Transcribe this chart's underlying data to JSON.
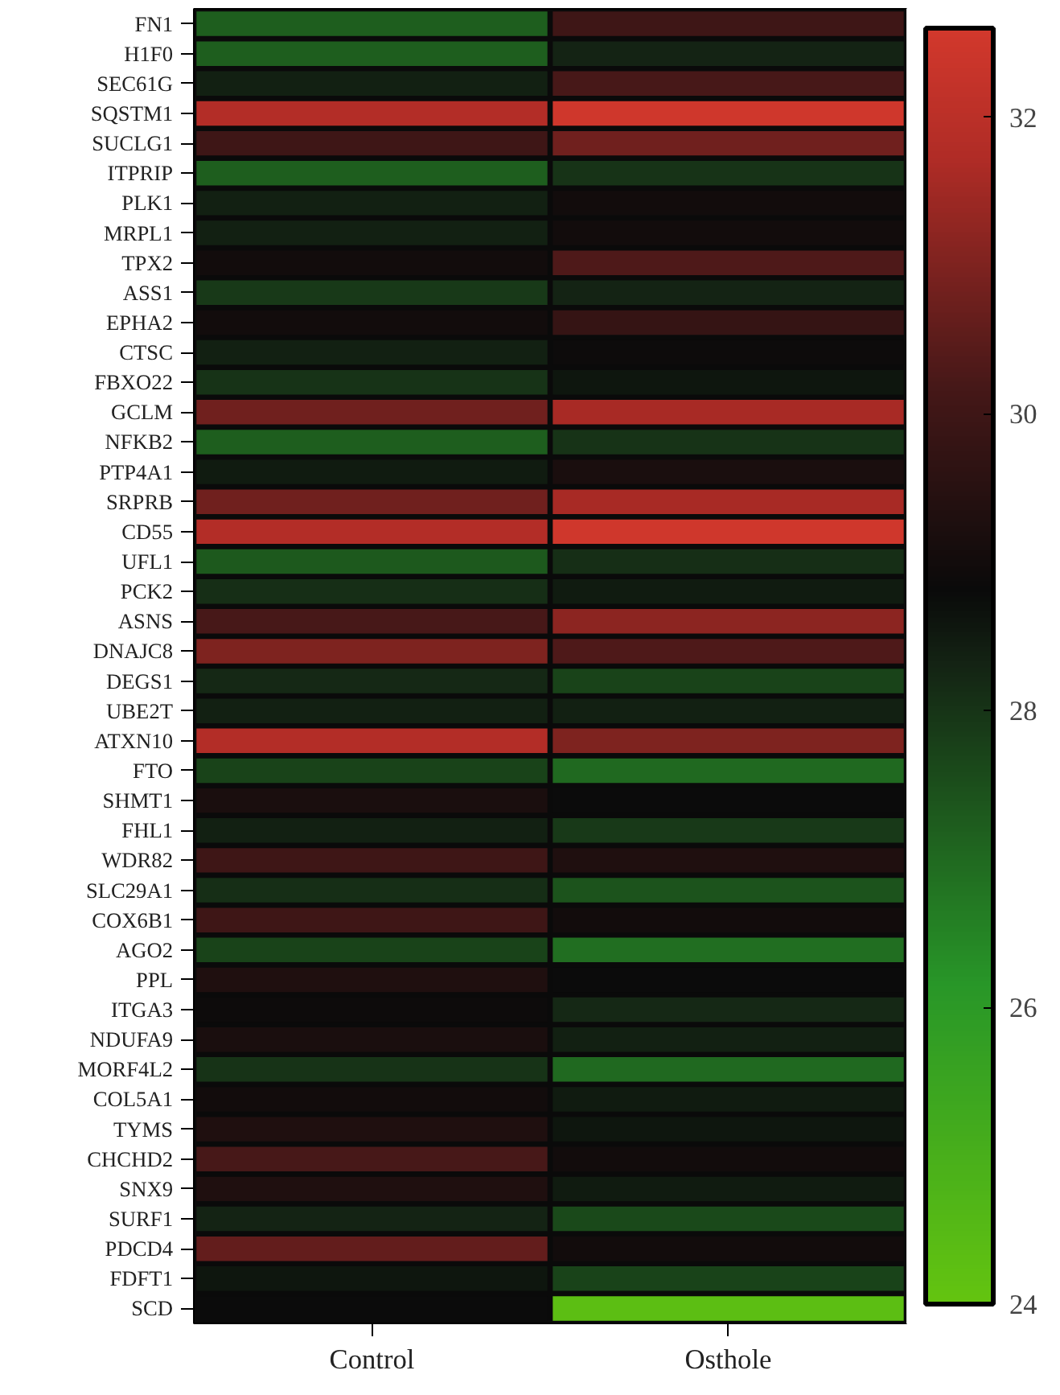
{
  "chart_data": {
    "type": "heatmap",
    "categories": [
      "Control",
      "Osthole"
    ],
    "y_categories": [
      "FN1",
      "H1F0",
      "SEC61G",
      "SQSTM1",
      "SUCLG1",
      "ITPRIP",
      "PLK1",
      "MRPL1",
      "TPX2",
      "ASS1",
      "EPHA2",
      "CTSC",
      "FBXO22",
      "GCLM",
      "NFKB2",
      "PTP4A1",
      "SRPRB",
      "CD55",
      "UFL1",
      "PCK2",
      "ASNS",
      "DNAJC8",
      "DEGS1",
      "UBE2T",
      "ATXN10",
      "FTO",
      "SHMT1",
      "FHL1",
      "WDR82",
      "SLC29A1",
      "COX6B1",
      "AGO2",
      "PPL",
      "ITGA3",
      "NDUFA9",
      "MORF4L2",
      "COL5A1",
      "TYMS",
      "CHCHD2",
      "SNX9",
      "SURF1",
      "PDCD4",
      "FDFT1",
      "SCD"
    ],
    "cells": [
      [
        27.2,
        30.0
      ],
      [
        27.2,
        28.3
      ],
      [
        28.4,
        30.2
      ],
      [
        31.8,
        32.5
      ],
      [
        30.0,
        30.8
      ],
      [
        27.2,
        28.0
      ],
      [
        28.4,
        29.0
      ],
      [
        28.4,
        29.0
      ],
      [
        29.0,
        30.3
      ],
      [
        27.9,
        28.3
      ],
      [
        29.0,
        29.8
      ],
      [
        28.4,
        28.9
      ],
      [
        28.0,
        28.6
      ],
      [
        30.8,
        31.6
      ],
      [
        27.2,
        28.0
      ],
      [
        28.5,
        29.2
      ],
      [
        30.8,
        31.6
      ],
      [
        31.8,
        32.5
      ],
      [
        27.3,
        28.1
      ],
      [
        28.1,
        28.5
      ],
      [
        30.2,
        31.2
      ],
      [
        31.0,
        30.3
      ],
      [
        28.2,
        27.7
      ],
      [
        28.4,
        28.4
      ],
      [
        31.8,
        31.0
      ],
      [
        27.7,
        27.0
      ],
      [
        29.2,
        28.8
      ],
      [
        28.4,
        27.9
      ],
      [
        30.0,
        29.3
      ],
      [
        28.1,
        27.4
      ],
      [
        30.0,
        29.0
      ],
      [
        27.7,
        26.9
      ],
      [
        29.3,
        28.8
      ],
      [
        28.9,
        28.2
      ],
      [
        29.2,
        28.4
      ],
      [
        28.0,
        27.0
      ],
      [
        29.0,
        28.5
      ],
      [
        29.3,
        28.6
      ],
      [
        30.2,
        29.0
      ],
      [
        29.3,
        28.5
      ],
      [
        28.3,
        27.6
      ],
      [
        30.6,
        29.0
      ],
      [
        28.6,
        27.7
      ],
      [
        28.8,
        24.3
      ]
    ],
    "clim": [
      24,
      32.6
    ],
    "cticks": [
      24,
      26,
      28,
      30,
      32
    ]
  }
}
